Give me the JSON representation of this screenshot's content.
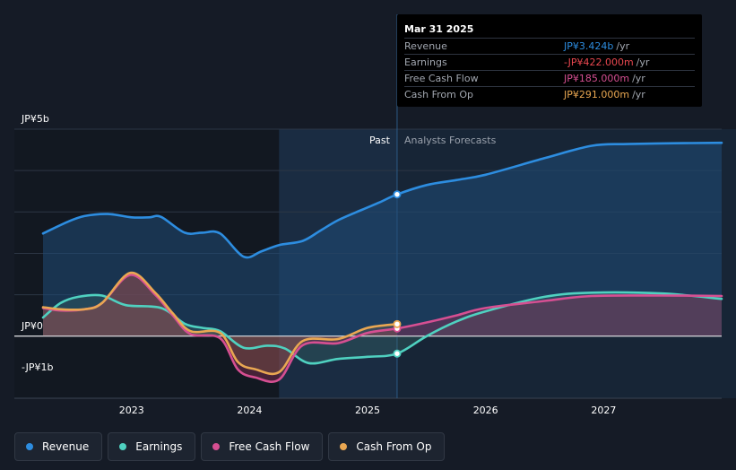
{
  "chart_data": {
    "type": "line",
    "title": "",
    "y_axis": {
      "labels": [
        "JP¥5b",
        "JP¥0",
        "-JP¥1b"
      ],
      "ylim_b": [
        -1.5,
        5
      ],
      "ticks_b": [
        5,
        0,
        -1
      ]
    },
    "x_axis": {
      "labels": [
        "2023",
        "2024",
        "2025",
        "2026",
        "2027"
      ],
      "xlim": [
        2022.25,
        2028.0
      ]
    },
    "regions": {
      "past_label": "Past",
      "forecast_label": "Analysts Forecasts",
      "split_x": 2025.25,
      "shade_start_x": 2024.25
    },
    "series": [
      {
        "name": "Revenue",
        "color": "#2d8de0",
        "points": [
          [
            2022.25,
            2.48
          ],
          [
            2022.45,
            2.75
          ],
          [
            2022.6,
            2.9
          ],
          [
            2022.8,
            2.95
          ],
          [
            2023.0,
            2.87
          ],
          [
            2023.15,
            2.87
          ],
          [
            2023.25,
            2.88
          ],
          [
            2023.45,
            2.5
          ],
          [
            2023.6,
            2.5
          ],
          [
            2023.75,
            2.48
          ],
          [
            2023.95,
            1.92
          ],
          [
            2024.1,
            2.05
          ],
          [
            2024.25,
            2.2
          ],
          [
            2024.45,
            2.3
          ],
          [
            2024.6,
            2.55
          ],
          [
            2024.75,
            2.8
          ],
          [
            2024.95,
            3.05
          ],
          [
            2025.1,
            3.23
          ],
          [
            2025.25,
            3.424
          ],
          [
            2025.5,
            3.65
          ],
          [
            2025.75,
            3.77
          ],
          [
            2026.0,
            3.9
          ],
          [
            2026.5,
            4.3
          ],
          [
            2026.9,
            4.6
          ],
          [
            2027.2,
            4.64
          ],
          [
            2027.6,
            4.66
          ],
          [
            2028.0,
            4.67
          ]
        ]
      },
      {
        "name": "Earnings",
        "color": "#4fd1c0",
        "points": [
          [
            2022.25,
            0.45
          ],
          [
            2022.4,
            0.8
          ],
          [
            2022.55,
            0.95
          ],
          [
            2022.75,
            0.98
          ],
          [
            2022.95,
            0.75
          ],
          [
            2023.25,
            0.68
          ],
          [
            2023.45,
            0.3
          ],
          [
            2023.6,
            0.2
          ],
          [
            2023.75,
            0.12
          ],
          [
            2023.95,
            -0.28
          ],
          [
            2024.15,
            -0.23
          ],
          [
            2024.3,
            -0.3
          ],
          [
            2024.5,
            -0.65
          ],
          [
            2024.75,
            -0.55
          ],
          [
            2025.0,
            -0.5
          ],
          [
            2025.25,
            -0.422
          ],
          [
            2025.5,
            0.0
          ],
          [
            2025.75,
            0.35
          ],
          [
            2026.0,
            0.6
          ],
          [
            2026.5,
            0.95
          ],
          [
            2026.9,
            1.05
          ],
          [
            2027.5,
            1.03
          ],
          [
            2028.0,
            0.9
          ]
        ]
      },
      {
        "name": "Free Cash Flow",
        "color": "#d64f92",
        "points": [
          [
            2022.25,
            0.68
          ],
          [
            2022.4,
            0.62
          ],
          [
            2022.6,
            0.65
          ],
          [
            2022.75,
            0.8
          ],
          [
            2022.99,
            1.48
          ],
          [
            2023.2,
            1.0
          ],
          [
            2023.35,
            0.5
          ],
          [
            2023.5,
            0.05
          ],
          [
            2023.75,
            -0.05
          ],
          [
            2023.9,
            -0.8
          ],
          [
            2024.05,
            -1.0
          ],
          [
            2024.25,
            -1.05
          ],
          [
            2024.45,
            -0.22
          ],
          [
            2024.75,
            -0.17
          ],
          [
            2025.0,
            0.08
          ],
          [
            2025.25,
            0.185
          ],
          [
            2025.5,
            0.33
          ],
          [
            2025.75,
            0.5
          ],
          [
            2026.0,
            0.68
          ],
          [
            2026.5,
            0.85
          ],
          [
            2026.9,
            0.97
          ],
          [
            2027.5,
            0.98
          ],
          [
            2028.0,
            0.97
          ]
        ]
      },
      {
        "name": "Cash From Op",
        "color": "#e9a752",
        "points": [
          [
            2022.25,
            0.7
          ],
          [
            2022.4,
            0.65
          ],
          [
            2022.6,
            0.65
          ],
          [
            2022.75,
            0.8
          ],
          [
            2022.99,
            1.53
          ],
          [
            2023.2,
            1.05
          ],
          [
            2023.35,
            0.55
          ],
          [
            2023.5,
            0.12
          ],
          [
            2023.75,
            0.08
          ],
          [
            2023.9,
            -0.62
          ],
          [
            2024.05,
            -0.8
          ],
          [
            2024.25,
            -0.87
          ],
          [
            2024.45,
            -0.12
          ],
          [
            2024.75,
            -0.07
          ],
          [
            2025.0,
            0.2
          ],
          [
            2025.25,
            0.291
          ]
        ]
      }
    ],
    "tooltip": {
      "date": "Mar 31 2025",
      "rows": [
        {
          "label": "Revenue",
          "value": "JP¥3.424b",
          "unit": "/yr",
          "color": "#2d8de0"
        },
        {
          "label": "Earnings",
          "value": "-JP¥422.000m",
          "unit": "/yr",
          "color": "#e8474f"
        },
        {
          "label": "Free Cash Flow",
          "value": "JP¥185.000m",
          "unit": "/yr",
          "color": "#d64f92"
        },
        {
          "label": "Cash From Op",
          "value": "JP¥291.000m",
          "unit": "/yr",
          "color": "#e9a752"
        }
      ]
    },
    "legend": [
      {
        "name": "Revenue",
        "color": "#2d8de0"
      },
      {
        "name": "Earnings",
        "color": "#4fd1c0"
      },
      {
        "name": "Free Cash Flow",
        "color": "#d64f92"
      },
      {
        "name": "Cash From Op",
        "color": "#e9a752"
      }
    ]
  }
}
